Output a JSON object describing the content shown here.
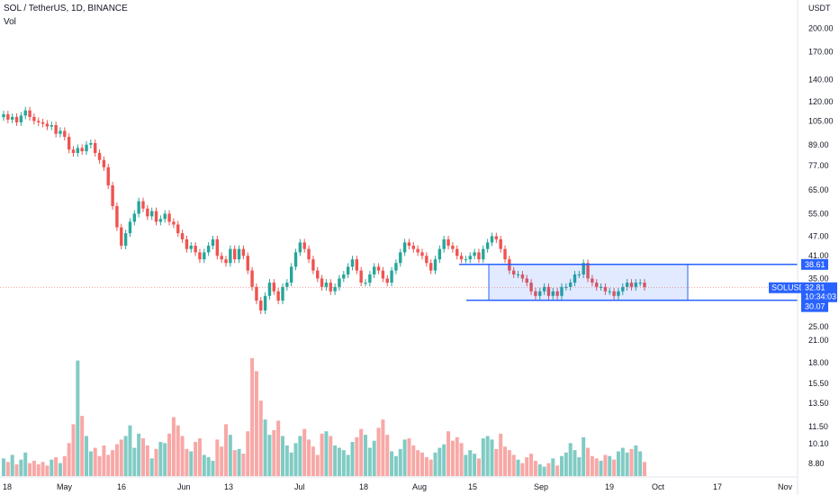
{
  "header": {
    "symbol_line": "SOL / TetherUS, 1D, BINANCE",
    "volume_label": "Vol"
  },
  "colors": {
    "up": "#26a69a",
    "down": "#ef5350",
    "up_vol": "#80cbc4",
    "down_vol": "#f7a8a6",
    "range_line": "#2962ff",
    "range_fill": "#2962ff22",
    "current_price_bg": "#2962ff"
  },
  "chart_data": {
    "type": "candlestick",
    "y_axis": {
      "unit": "USDT",
      "scale": "log",
      "ticks": [
        200.0,
        170.0,
        140.0,
        120.0,
        105.0,
        89.0,
        77.0,
        65.0,
        55.0,
        47.0,
        41.0,
        35.0,
        25.0,
        21.0,
        18.0,
        15.5,
        13.5,
        11.5,
        10.1,
        8.8
      ]
    },
    "x_axis": {
      "ticks": [
        "18",
        "May",
        "16",
        "Jun",
        "13",
        "Jul",
        "18",
        "Aug",
        "15",
        "Sep",
        "19",
        "Oct",
        "17",
        "Nov"
      ]
    },
    "range_box": {
      "top": 38.61,
      "bottom": 30.07
    },
    "current_price": {
      "symbol": "SOLUSDT",
      "price": "32.81",
      "countdown": "10:34:03"
    },
    "candles_close": [
      110,
      106,
      108,
      104,
      109,
      113,
      108,
      105,
      104,
      103,
      101,
      102,
      96,
      98,
      94,
      86,
      84,
      87,
      85,
      89,
      90,
      84,
      80,
      76,
      67,
      58,
      50,
      44,
      48,
      52,
      55,
      60,
      57,
      54,
      56,
      52,
      53,
      55,
      52,
      51,
      48,
      46,
      43,
      44,
      42,
      40,
      42,
      44,
      46,
      41,
      40,
      39,
      43,
      40,
      43,
      41,
      37,
      33,
      30,
      28,
      31,
      34,
      32,
      30,
      33,
      34,
      38,
      42,
      45,
      43,
      40,
      37,
      35,
      33,
      34,
      32,
      33,
      35,
      36,
      38,
      40,
      37,
      34,
      34,
      36,
      38,
      37,
      35,
      34,
      37,
      39,
      42,
      45,
      44,
      43,
      42,
      41,
      39,
      37,
      40,
      43,
      46,
      44,
      43,
      41,
      40,
      40,
      41,
      42,
      40,
      43,
      45,
      47,
      46,
      43,
      40,
      37,
      36,
      36,
      35,
      34,
      32,
      31,
      32,
      33,
      31,
      32,
      31,
      33,
      33,
      34,
      36,
      36,
      39,
      35,
      34,
      33,
      33,
      32,
      32,
      31,
      32,
      33,
      34,
      33,
      34,
      34,
      33
    ],
    "volume": [
      9.5,
      9.2,
      9.8,
      9.0,
      9.4,
      10.0,
      9.1,
      9.3,
      9.0,
      9.2,
      8.9,
      9.4,
      9.6,
      9.1,
      9.7,
      10.8,
      12.4,
      17.8,
      13.1,
      11.4,
      10.1,
      10.4,
      9.7,
      10.6,
      9.8,
      10.2,
      10.7,
      11.1,
      11.4,
      12.3,
      10.4,
      11.6,
      11.2,
      10.6,
      9.5,
      10.3,
      10.9,
      10.8,
      11.6,
      13.0,
      12.3,
      11.4,
      10.3,
      10.1,
      10.9,
      11.2,
      9.8,
      9.6,
      9.3,
      11.1,
      10.5,
      12.4,
      11.5,
      10.2,
      10.3,
      9.9,
      11.8,
      18.0,
      16.9,
      14.4,
      12.8,
      11.5,
      11.9,
      12.7,
      11.4,
      10.6,
      10.0,
      10.8,
      11.4,
      12.0,
      11.1,
      10.5,
      9.8,
      11.6,
      11.8,
      11.4,
      10.6,
      10.4,
      10.2,
      9.8,
      10.9,
      11.3,
      12.0,
      11.5,
      10.4,
      11.0,
      12.1,
      12.8,
      11.5,
      10.1,
      9.7,
      10.3,
      11.1,
      11.2,
      10.6,
      10.2,
      10.0,
      9.6,
      9.4,
      10.0,
      10.4,
      10.7,
      11.8,
      11.0,
      11.3,
      10.8,
      9.8,
      10.2,
      9.9,
      9.5,
      11.2,
      11.4,
      11.1,
      10.3,
      11.6,
      10.5,
      10.2,
      9.8,
      9.4,
      9.1,
      9.6,
      9.9,
      9.3,
      9.0,
      8.8,
      9.1,
      9.5,
      8.9,
      9.7,
      10.0,
      10.8,
      10.2,
      9.6,
      11.3,
      10.4,
      9.7,
      9.5,
      9.3,
      9.8,
      9.7,
      9.4,
      10.1,
      10.4,
      10.0,
      10.3,
      10.6,
      10.1,
      9.2
    ]
  }
}
